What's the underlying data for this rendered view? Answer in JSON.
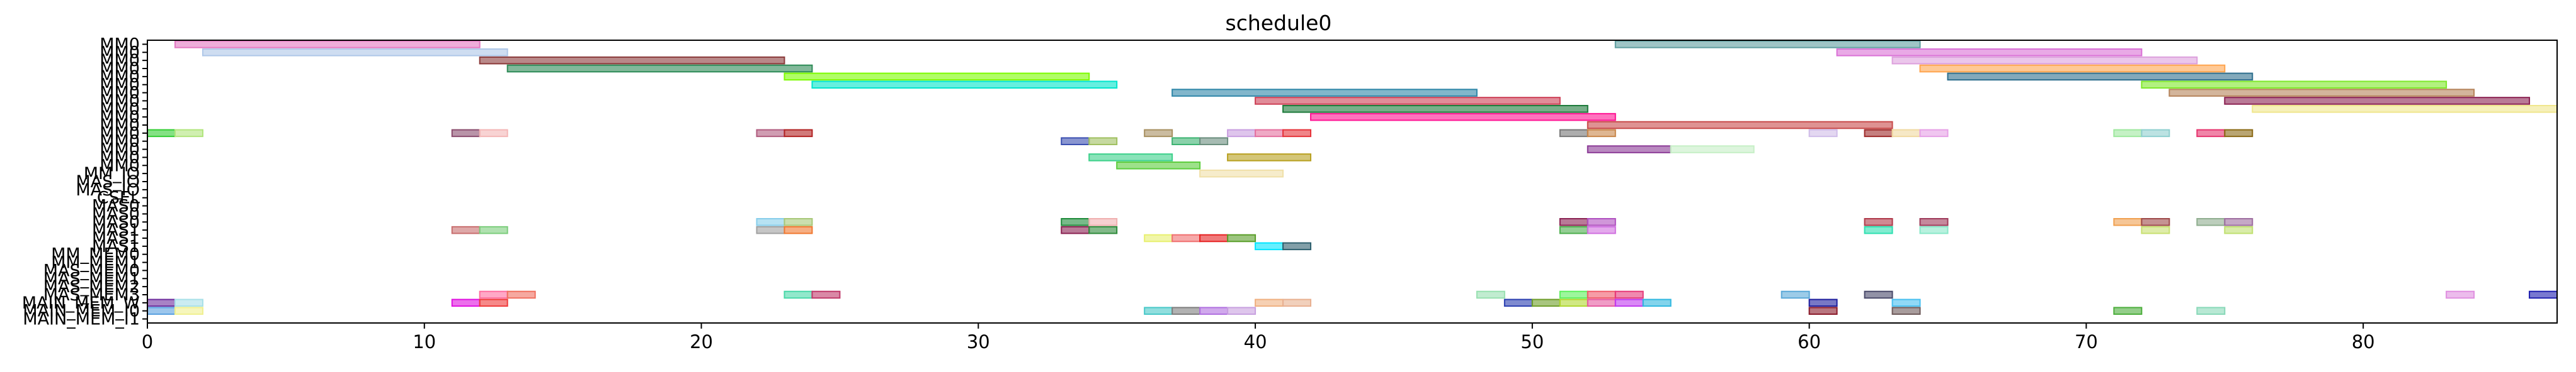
{
  "chart_data": {
    "type": "gantt",
    "title": "schedule0",
    "xlabel": "",
    "ylabel": "",
    "xlim": [
      0,
      87
    ],
    "xticks": [
      0,
      10,
      20,
      30,
      40,
      50,
      60,
      70,
      80
    ],
    "grid": false,
    "rows": [
      "MM0",
      "MM0",
      "MM0",
      "MM0",
      "MM0",
      "MM0",
      "MM0",
      "MM0",
      "MM0",
      "MM0",
      "MM0",
      "MM0",
      "MM0",
      "MM0",
      "MM0",
      "MM0",
      "MM_IO",
      "MAS_IO",
      "MAS_IO",
      "CSEL",
      "MAS0",
      "MAS0",
      "MAS0",
      "MAS1",
      "MAS1",
      "MAS1",
      "MM_MEM0",
      "MM_MEM1",
      "MAS_MEM0",
      "MAS_MEM1",
      "MAS_MEM2",
      "MAS_MEM3",
      "MAIN_MEM_W",
      "MAIN_MEM_I0",
      "MAIN_MEM_I1"
    ],
    "tasks": [
      {
        "row": 0,
        "start": 1,
        "end": 12,
        "color": "#e377c2"
      },
      {
        "row": 0,
        "start": 53,
        "end": 64,
        "color": "#5f9ea0"
      },
      {
        "row": 1,
        "start": 2,
        "end": 13,
        "color": "#aec7e8"
      },
      {
        "row": 1,
        "start": 61,
        "end": 72,
        "color": "#da70d6"
      },
      {
        "row": 2,
        "start": 12,
        "end": 23,
        "color": "#8b3a3a"
      },
      {
        "row": 2,
        "start": 63,
        "end": 74,
        "color": "#dda0dd"
      },
      {
        "row": 3,
        "start": 13,
        "end": 24,
        "color": "#2e8b57"
      },
      {
        "row": 3,
        "start": 64,
        "end": 75,
        "color": "#ffa54f"
      },
      {
        "row": 4,
        "start": 23,
        "end": 34,
        "color": "#7cfc00"
      },
      {
        "row": 4,
        "start": 65,
        "end": 76,
        "color": "#2e6f8e"
      },
      {
        "row": 5,
        "start": 24,
        "end": 35,
        "color": "#00e5cc"
      },
      {
        "row": 5,
        "start": 72,
        "end": 83,
        "color": "#7ee82a"
      },
      {
        "row": 6,
        "start": 37,
        "end": 48,
        "color": "#2e86a8"
      },
      {
        "row": 6,
        "start": 73,
        "end": 84,
        "color": "#b5835a"
      },
      {
        "row": 7,
        "start": 40,
        "end": 51,
        "color": "#cd3f55"
      },
      {
        "row": 7,
        "start": 75,
        "end": 86,
        "color": "#8b2252"
      },
      {
        "row": 8,
        "start": 41,
        "end": 52,
        "color": "#1c7a3a"
      },
      {
        "row": 8,
        "start": 76,
        "end": 87,
        "color": "#f0e68c"
      },
      {
        "row": 9,
        "start": 42,
        "end": 53,
        "color": "#ff1493"
      },
      {
        "row": 10,
        "start": 52,
        "end": 63,
        "color": "#c84a4a"
      },
      {
        "row": 11,
        "start": 0,
        "end": 1,
        "color": "#32cd32"
      },
      {
        "row": 11,
        "start": 1,
        "end": 2,
        "color": "#b0e57c"
      },
      {
        "row": 11,
        "start": 11,
        "end": 12,
        "color": "#8b4c6e"
      },
      {
        "row": 11,
        "start": 12,
        "end": 13,
        "color": "#f4b6b6"
      },
      {
        "row": 11,
        "start": 22,
        "end": 23,
        "color": "#b05c7e"
      },
      {
        "row": 11,
        "start": 23,
        "end": 24,
        "color": "#b22222"
      },
      {
        "row": 11,
        "start": 36,
        "end": 37,
        "color": "#a89060"
      },
      {
        "row": 11,
        "start": 39,
        "end": 40,
        "color": "#c89ee0"
      },
      {
        "row": 11,
        "start": 40,
        "end": 41,
        "color": "#e56f9e"
      },
      {
        "row": 11,
        "start": 41,
        "end": 42,
        "color": "#e6333a"
      },
      {
        "row": 11,
        "start": 51,
        "end": 52,
        "color": "#777777"
      },
      {
        "row": 11,
        "start": 52,
        "end": 53,
        "color": "#c8864a"
      },
      {
        "row": 11,
        "start": 60,
        "end": 61,
        "color": "#d0bce8"
      },
      {
        "row": 11,
        "start": 62,
        "end": 63,
        "color": "#9e2a2a"
      },
      {
        "row": 11,
        "start": 63,
        "end": 64,
        "color": "#f0d9a0"
      },
      {
        "row": 11,
        "start": 64,
        "end": 65,
        "color": "#e6a0e6"
      },
      {
        "row": 11,
        "start": 71,
        "end": 72,
        "color": "#9ee89e"
      },
      {
        "row": 11,
        "start": 72,
        "end": 73,
        "color": "#8fcfcf"
      },
      {
        "row": 11,
        "start": 74,
        "end": 75,
        "color": "#e6336e"
      },
      {
        "row": 11,
        "start": 75,
        "end": 76,
        "color": "#8b6914"
      },
      {
        "row": 12,
        "start": 33,
        "end": 34,
        "color": "#3a4fb0"
      },
      {
        "row": 12,
        "start": 34,
        "end": 35,
        "color": "#a0c060"
      },
      {
        "row": 12,
        "start": 37,
        "end": 38,
        "color": "#3cb371"
      },
      {
        "row": 12,
        "start": 38,
        "end": 39,
        "color": "#6b8e7e"
      },
      {
        "row": 13,
        "start": 52,
        "end": 55,
        "color": "#8b3a96"
      },
      {
        "row": 13,
        "start": 55,
        "end": 58,
        "color": "#c6efc6"
      },
      {
        "row": 14,
        "start": 34,
        "end": 37,
        "color": "#3cd08a"
      },
      {
        "row": 14,
        "start": 39,
        "end": 42,
        "color": "#b8a020"
      },
      {
        "row": 15,
        "start": 35,
        "end": 38,
        "color": "#5ccd3c"
      },
      {
        "row": 16,
        "start": 38,
        "end": 41,
        "color": "#f0e0a8"
      },
      {
        "row": 22,
        "start": 22,
        "end": 23,
        "color": "#87ceeb"
      },
      {
        "row": 22,
        "start": 23,
        "end": 24,
        "color": "#a8c878"
      },
      {
        "row": 22,
        "start": 33,
        "end": 34,
        "color": "#1e8b3a"
      },
      {
        "row": 22,
        "start": 34,
        "end": 35,
        "color": "#f0b0b0"
      },
      {
        "row": 22,
        "start": 51,
        "end": 52,
        "color": "#8b2252"
      },
      {
        "row": 22,
        "start": 52,
        "end": 53,
        "color": "#b050c0"
      },
      {
        "row": 22,
        "start": 62,
        "end": 63,
        "color": "#b03a4a"
      },
      {
        "row": 22,
        "start": 64,
        "end": 65,
        "color": "#9e3a5a"
      },
      {
        "row": 22,
        "start": 71,
        "end": 72,
        "color": "#f0a050"
      },
      {
        "row": 22,
        "start": 72,
        "end": 73,
        "color": "#9e4a4a"
      },
      {
        "row": 22,
        "start": 74,
        "end": 75,
        "color": "#8fae8f"
      },
      {
        "row": 22,
        "start": 75,
        "end": 76,
        "color": "#9e6ea0"
      },
      {
        "row": 23,
        "start": 11,
        "end": 12,
        "color": "#c86e6e"
      },
      {
        "row": 23,
        "start": 12,
        "end": 13,
        "color": "#7ccd7c"
      },
      {
        "row": 23,
        "start": 22,
        "end": 23,
        "color": "#a0a0a0"
      },
      {
        "row": 23,
        "start": 23,
        "end": 24,
        "color": "#f07830"
      },
      {
        "row": 23,
        "start": 33,
        "end": 34,
        "color": "#8b2252"
      },
      {
        "row": 23,
        "start": 34,
        "end": 35,
        "color": "#2e8b3a"
      },
      {
        "row": 23,
        "start": 51,
        "end": 52,
        "color": "#4cae4c"
      },
      {
        "row": 23,
        "start": 52,
        "end": 53,
        "color": "#d070e0"
      },
      {
        "row": 23,
        "start": 62,
        "end": 63,
        "color": "#2ee0b0"
      },
      {
        "row": 23,
        "start": 64,
        "end": 65,
        "color": "#88e8c8"
      },
      {
        "row": 23,
        "start": 72,
        "end": 73,
        "color": "#c8e070"
      },
      {
        "row": 23,
        "start": 75,
        "end": 76,
        "color": "#c0e070"
      },
      {
        "row": 24,
        "start": 36,
        "end": 37,
        "color": "#e8f070"
      },
      {
        "row": 24,
        "start": 37,
        "end": 38,
        "color": "#f07070"
      },
      {
        "row": 24,
        "start": 38,
        "end": 39,
        "color": "#e62222"
      },
      {
        "row": 24,
        "start": 39,
        "end": 40,
        "color": "#5a9e2a"
      },
      {
        "row": 25,
        "start": 40,
        "end": 41,
        "color": "#00e5ff"
      },
      {
        "row": 25,
        "start": 41,
        "end": 42,
        "color": "#2e5f6e"
      },
      {
        "row": 31,
        "start": 12,
        "end": 13,
        "color": "#ff6ea0"
      },
      {
        "row": 31,
        "start": 13,
        "end": 14,
        "color": "#f07060"
      },
      {
        "row": 31,
        "start": 23,
        "end": 24,
        "color": "#48d8a8"
      },
      {
        "row": 31,
        "start": 24,
        "end": 25,
        "color": "#c03a6a"
      },
      {
        "row": 31,
        "start": 48,
        "end": 49,
        "color": "#98e0b0"
      },
      {
        "row": 31,
        "start": 51,
        "end": 52,
        "color": "#5cf05c"
      },
      {
        "row": 31,
        "start": 52,
        "end": 53,
        "color": "#f05a6a"
      },
      {
        "row": 31,
        "start": 53,
        "end": 54,
        "color": "#e63a7a"
      },
      {
        "row": 31,
        "start": 59,
        "end": 60,
        "color": "#5aa8d8"
      },
      {
        "row": 31,
        "start": 62,
        "end": 63,
        "color": "#4a4a6a"
      },
      {
        "row": 31,
        "start": 83,
        "end": 84,
        "color": "#e090e0"
      },
      {
        "row": 31,
        "start": 86,
        "end": 87,
        "color": "#2020b0"
      },
      {
        "row": 32,
        "start": 0,
        "end": 1,
        "color": "#6e2e9e"
      },
      {
        "row": 32,
        "start": 1,
        "end": 2,
        "color": "#a8e0e8"
      },
      {
        "row": 32,
        "start": 11,
        "end": 12,
        "color": "#e010e0"
      },
      {
        "row": 32,
        "start": 12,
        "end": 13,
        "color": "#f03a3a"
      },
      {
        "row": 32,
        "start": 40,
        "end": 41,
        "color": "#f0b080"
      },
      {
        "row": 32,
        "start": 41,
        "end": 42,
        "color": "#e8b090"
      },
      {
        "row": 32,
        "start": 49,
        "end": 50,
        "color": "#2a3eb0"
      },
      {
        "row": 32,
        "start": 50,
        "end": 51,
        "color": "#6e9e2a"
      },
      {
        "row": 32,
        "start": 51,
        "end": 52,
        "color": "#b0d830"
      },
      {
        "row": 32,
        "start": 52,
        "end": 53,
        "color": "#e65aa0"
      },
      {
        "row": 32,
        "start": 53,
        "end": 54,
        "color": "#c03af0"
      },
      {
        "row": 32,
        "start": 54,
        "end": 55,
        "color": "#30b8e0"
      },
      {
        "row": 32,
        "start": 60,
        "end": 61,
        "color": "#1e1e9e"
      },
      {
        "row": 32,
        "start": 63,
        "end": 64,
        "color": "#48c0f0"
      },
      {
        "row": 33,
        "start": 0,
        "end": 1,
        "color": "#5aa0e0"
      },
      {
        "row": 33,
        "start": 1,
        "end": 2,
        "color": "#f0f090"
      },
      {
        "row": 33,
        "start": 36,
        "end": 37,
        "color": "#48c8c8"
      },
      {
        "row": 33,
        "start": 37,
        "end": 38,
        "color": "#7e7e7e"
      },
      {
        "row": 33,
        "start": 38,
        "end": 39,
        "color": "#b070e0"
      },
      {
        "row": 33,
        "start": 39,
        "end": 40,
        "color": "#c8a0e0"
      },
      {
        "row": 33,
        "start": 60,
        "end": 61,
        "color": "#8b1a2a"
      },
      {
        "row": 33,
        "start": 63,
        "end": 64,
        "color": "#6e5a5a"
      },
      {
        "row": 33,
        "start": 71,
        "end": 72,
        "color": "#4cae3c"
      },
      {
        "row": 33,
        "start": 74,
        "end": 75,
        "color": "#88d8b8"
      }
    ]
  }
}
